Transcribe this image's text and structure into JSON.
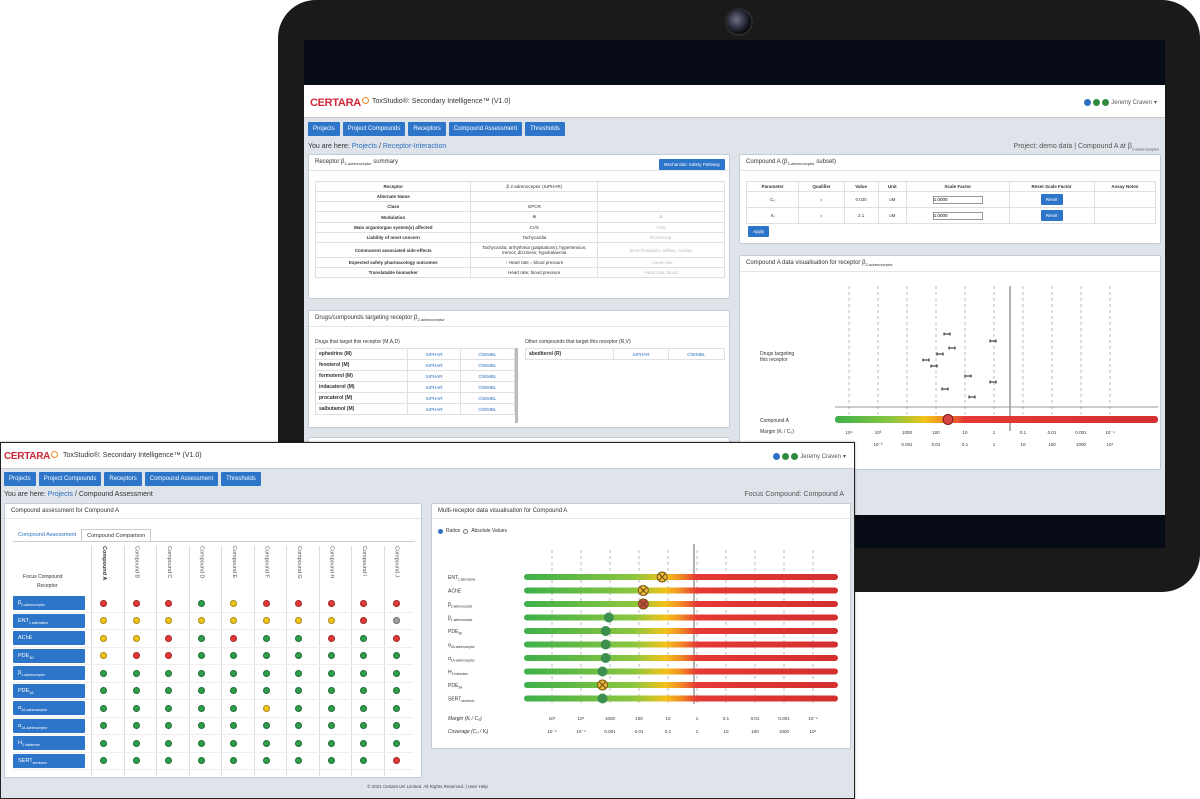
{
  "app": {
    "brand": "CERTARA",
    "title": "ToxStudio®: Secondary Intelligence™ (V1.0)",
    "user": "Jeremy Craven"
  },
  "nav": [
    "Projects",
    "Project Compounds",
    "Receptors",
    "Compound Assessment",
    "Thresholds"
  ],
  "back": {
    "breadcrumb_prefix": "You are here:",
    "breadcrumb_link": "Projects",
    "breadcrumb_current": "Receptor-Interaction",
    "project": "Project: demo data | Compound A at β",
    "project_sub": "2-adrenoceptor",
    "summary": {
      "title": "Receptor β",
      "title_sub": "2-adrenoceptor",
      "title_end": "summary",
      "button": "Mechanistic Safety Pathway",
      "rows": [
        {
          "label": "Receptor",
          "value": "β 2-adrenoceptor (IUPHAR)",
          "extra": ""
        },
        {
          "label": "Alternate Name",
          "value": "",
          "extra": ""
        },
        {
          "label": "Class",
          "value": "GPCR",
          "extra": ""
        },
        {
          "label": "Modulation",
          "value": "⊕",
          "extra": "⊗"
        },
        {
          "label": "Main organ/organ system(s) affected",
          "value": "CVS",
          "extra": "CNS"
        },
        {
          "label": "Liability of most concern",
          "value": "Tachycardia",
          "extra": "Bronchosp."
        },
        {
          "label": "Commonest associated side-effects",
          "value": "Tachycardia; arrhythmia (palpitations); hypertension; tremor; dizziness; hypokalaemia",
          "extra": "Bronchospasm; airflow; cardiac"
        },
        {
          "label": "Expected safety pharmacology outcomes",
          "value": "↑ Heart rate ↓ blood pressure",
          "extra": "...heart rate"
        },
        {
          "label": "Translatable biomarker",
          "value": "Heart rate; blood pressure",
          "extra": "Heart rate; blood"
        }
      ]
    },
    "drugs": {
      "title": "Drugs/compounds targeting receptor β",
      "title_sub": "2-adrenoceptor",
      "left_head": "Drugs that target this receptor (M,A,D)",
      "right_head": "Other compounds that target this receptor (R,V)",
      "left": [
        {
          "name": "ephedrine (M)",
          "a": "IUPHAR",
          "b": "ChEMBL"
        },
        {
          "name": "fenoterol (M)",
          "a": "IUPHAR",
          "b": "ChEMBL"
        },
        {
          "name": "formoterol (M)",
          "a": "IUPHAR",
          "b": "ChEMBL"
        },
        {
          "name": "indacaterol (M)",
          "a": "IUPHAR",
          "b": "ChEMBL"
        },
        {
          "name": "procaterol (M)",
          "a": "IUPHAR",
          "b": "ChEMBL"
        },
        {
          "name": "salbutamol (M)",
          "a": "IUPHAR",
          "b": "ChEMBL"
        }
      ],
      "right": [
        {
          "name": "abediterol (R)",
          "a": "IUPHAR",
          "b": "ChEMBL"
        }
      ]
    },
    "params": {
      "title": "Compound A (β",
      "title_sub": "2-adrenoceptor",
      "title_end": "subset)",
      "headers": [
        "Parameter",
        "Qualifier",
        "Value",
        "Unit",
        "Scale Factor",
        "Reset Scale Factor",
        "Assay Notes"
      ],
      "rows": [
        {
          "p": "C₀",
          "q": "=",
          "v": "0.020",
          "u": "uM",
          "s": "1.0000",
          "r": "Reset"
        },
        {
          "p": "Kᵢ",
          "q": "=",
          "v": "2.1",
          "u": "uM",
          "s": "1.0000",
          "r": "Reset"
        }
      ],
      "apply": "Apply"
    },
    "viz": {
      "title": "Compound A data visualisation for receptor β",
      "title_sub": "2-adrenoceptor",
      "ylabel": "Drugs targeting this receptor",
      "compound": "Compound A",
      "margin_label": "Margin (Kᵢ / C₀)",
      "top_ticks": [
        "10⁴",
        "10³",
        "1000",
        "100",
        "10",
        "1",
        "0.1",
        "0.01",
        "0.001",
        "10⁻⁴"
      ],
      "bot_ticks": [
        "10⁻⁴",
        "10⁻³",
        "0.001",
        "0.01",
        "0.1",
        "1",
        "10",
        "100",
        "1000",
        "10⁴"
      ]
    }
  },
  "front": {
    "breadcrumb_prefix": "You are here:",
    "breadcrumb_link": "Projects",
    "breadcrumb_current": "Compound Assessment",
    "focus": "Focus Compound: Compound A",
    "left_title": "Compound assessment for Compound A",
    "tabs": [
      "Compound Assessment",
      "Compound Comparison"
    ],
    "focus_label": "Focus Compound",
    "receptor_label": "Receptor",
    "compounds": [
      "Compound A",
      "Compound B",
      "Compound C",
      "Compound D",
      "Compound E",
      "Compound F",
      "Compound G",
      "Compound H",
      "Compound I",
      "Compound J"
    ],
    "receptors": [
      {
        "name": "β",
        "sub": "2-adrenoceptor",
        "s": [
          "r",
          "r",
          "r",
          "g",
          "y",
          "r",
          "r",
          "r",
          "r",
          "r"
        ]
      },
      {
        "name": "ENT",
        "sub": "1 adenosine",
        "s": [
          "y",
          "y",
          "y",
          "y",
          "y",
          "y",
          "y",
          "y",
          "r",
          "n"
        ]
      },
      {
        "name": "AChE",
        "sub": "",
        "s": [
          "y",
          "y",
          "r",
          "g",
          "r",
          "g",
          "g",
          "r",
          "g",
          "r"
        ]
      },
      {
        "name": "PDE",
        "sub": "4D",
        "s": [
          "y",
          "r",
          "r",
          "g",
          "g",
          "g",
          "g",
          "g",
          "g",
          "g"
        ]
      },
      {
        "name": "β",
        "sub": "1-adrenoceptor",
        "s": [
          "g",
          "g",
          "g",
          "g",
          "g",
          "g",
          "g",
          "g",
          "g",
          "g"
        ]
      },
      {
        "name": "PDE",
        "sub": "3A",
        "s": [
          "g",
          "g",
          "g",
          "g",
          "g",
          "g",
          "g",
          "g",
          "g",
          "g"
        ]
      },
      {
        "name": "α",
        "sub": "2A-adrenoceptor",
        "s": [
          "g",
          "g",
          "g",
          "g",
          "g",
          "y",
          "g",
          "g",
          "g",
          "g"
        ]
      },
      {
        "name": "α",
        "sub": "1A-adrenoceptor",
        "s": [
          "g",
          "g",
          "g",
          "g",
          "g",
          "g",
          "g",
          "g",
          "g",
          "g"
        ]
      },
      {
        "name": "H",
        "sub": "2 histamine",
        "s": [
          "g",
          "g",
          "g",
          "g",
          "g",
          "g",
          "g",
          "g",
          "g",
          "g"
        ]
      },
      {
        "name": "SERT",
        "sub": "serotonin",
        "s": [
          "g",
          "g",
          "g",
          "g",
          "g",
          "g",
          "g",
          "g",
          "g",
          "r"
        ]
      }
    ],
    "multi_title": "Multi-receptor data visualisation for Compound A",
    "radio_a": "Ratios",
    "radio_b": "Absolute Values",
    "bars": [
      {
        "name": "ENT",
        "sub": "1 adenosine",
        "pos": 0.44,
        "kind": "x"
      },
      {
        "name": "AChE",
        "sub": "",
        "pos": 0.38,
        "kind": "x"
      },
      {
        "name": "β",
        "sub": "2-adrenoceptor",
        "pos": 0.38,
        "kind": "xr"
      },
      {
        "name": "β",
        "sub": "1-adrenoceptor",
        "pos": 0.27,
        "kind": "g"
      },
      {
        "name": "PDE",
        "sub": "4D",
        "pos": 0.26,
        "kind": "g"
      },
      {
        "name": "α",
        "sub": "2A-adrenoceptor",
        "pos": 0.26,
        "kind": "g"
      },
      {
        "name": "α",
        "sub": "1A-adrenoceptor",
        "pos": 0.26,
        "kind": "g"
      },
      {
        "name": "H",
        "sub": "2 histamine",
        "pos": 0.25,
        "kind": "g"
      },
      {
        "name": "PDE",
        "sub": "3A",
        "pos": 0.25,
        "kind": "x"
      },
      {
        "name": "SERT",
        "sub": "serotonin",
        "pos": 0.25,
        "kind": "g"
      }
    ],
    "margin_label": "Margin (Kᵢ / C₀)",
    "coverage_label": "Coverage (C₀ / Kᵢ)",
    "margin_ticks": [
      "10⁵",
      "10⁴",
      "1000",
      "100",
      "10",
      "1",
      "0.1",
      "0.01",
      "0.001",
      "10⁻⁴"
    ],
    "coverage_ticks": [
      "10⁻⁵",
      "10⁻⁴",
      "0.001",
      "0.01",
      "0.1",
      "1",
      "10",
      "100",
      "1000",
      "10⁴"
    ],
    "footer": "© 2021 Certara UK Limited. All Rights Reserved. | User Help"
  }
}
